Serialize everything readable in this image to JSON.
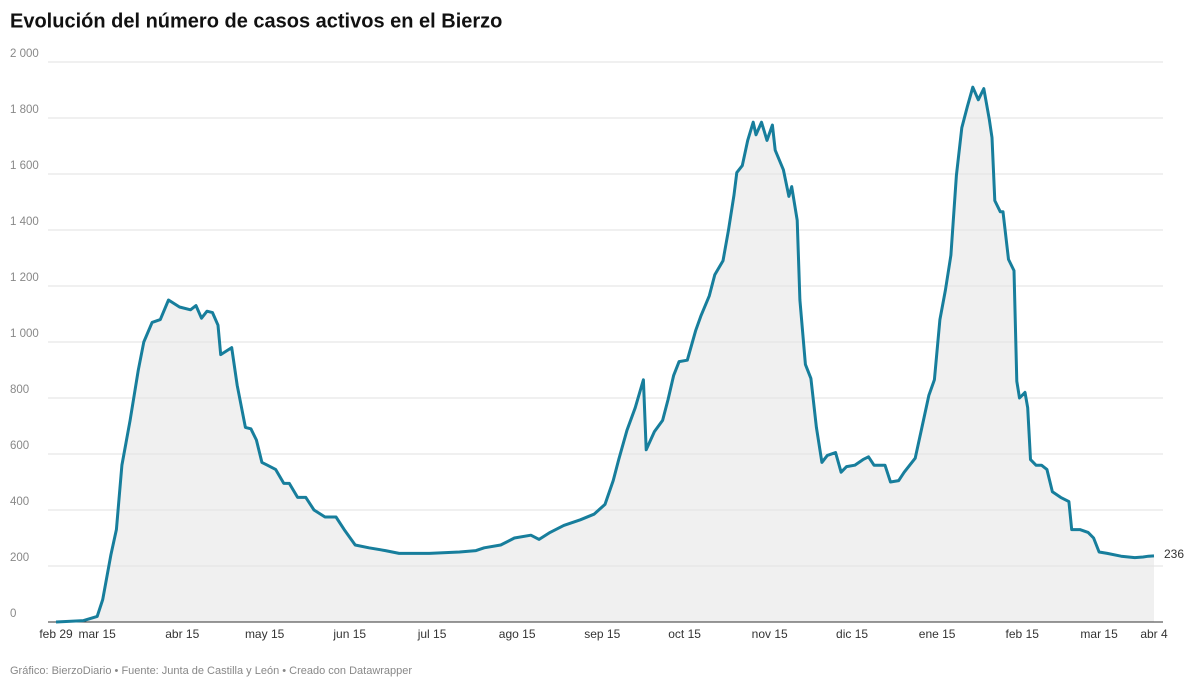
{
  "chart_data": {
    "type": "area",
    "title": "Evolución del número de casos activos en el Bierzo",
    "footer": "Gráfico: BierzoDiario • Fuente: Junta de Castilla y León • Creado con Datawrapper",
    "color": "#177e9c",
    "fill": "#f0f0f0",
    "grid": true,
    "x": [
      0,
      10,
      15,
      17,
      20,
      22,
      24,
      27,
      30,
      32,
      35,
      38,
      41,
      45,
      49,
      51,
      53,
      55,
      57,
      59,
      60,
      64,
      66,
      69,
      71,
      73,
      75,
      77,
      80,
      83,
      85,
      88,
      91,
      94,
      98,
      102,
      105,
      109,
      114,
      120,
      125,
      136,
      147,
      153,
      156,
      162,
      167,
      173,
      176,
      180,
      185,
      191,
      196,
      200,
      203,
      205,
      208,
      211,
      214,
      215,
      218,
      221,
      223,
      225,
      227,
      230,
      233,
      235,
      238,
      240,
      243,
      245,
      247,
      248,
      250,
      252,
      254,
      255,
      257,
      259,
      261,
      262,
      265,
      267,
      268,
      270,
      271,
      273,
      275,
      277,
      279,
      281,
      284,
      286,
      288,
      291,
      294,
      296,
      298,
      302,
      304,
      307,
      309,
      313,
      315,
      318,
      320,
      322,
      324,
      326,
      328,
      330,
      332,
      334,
      336,
      338,
      340,
      341,
      342,
      344,
      345,
      347,
      349,
      350,
      351,
      353,
      354,
      355,
      357,
      359,
      361,
      363,
      366,
      369,
      370,
      373,
      376,
      378,
      380,
      383,
      388,
      393,
      396,
      398,
      400
    ],
    "values": [
      0,
      5,
      20,
      80,
      240,
      330,
      560,
      720,
      900,
      1000,
      1070,
      1080,
      1150,
      1125,
      1115,
      1130,
      1085,
      1110,
      1105,
      1060,
      955,
      980,
      845,
      695,
      690,
      650,
      570,
      560,
      545,
      495,
      495,
      445,
      445,
      400,
      375,
      375,
      330,
      275,
      265,
      255,
      245,
      245,
      250,
      255,
      265,
      275,
      300,
      310,
      295,
      320,
      345,
      365,
      385,
      420,
      505,
      580,
      685,
      765,
      865,
      615,
      680,
      720,
      795,
      880,
      930,
      935,
      1040,
      1095,
      1165,
      1240,
      1290,
      1400,
      1525,
      1605,
      1630,
      1720,
      1785,
      1740,
      1785,
      1720,
      1775,
      1685,
      1615,
      1520,
      1555,
      1435,
      1150,
      920,
      870,
      695,
      570,
      595,
      605,
      535,
      555,
      560,
      580,
      590,
      560,
      560,
      500,
      505,
      535,
      585,
      675,
      810,
      865,
      1080,
      1185,
      1310,
      1595,
      1765,
      1840,
      1910,
      1865,
      1905,
      1795,
      1730,
      1505,
      1465,
      1465,
      1295,
      1255,
      860,
      800,
      820,
      765,
      580,
      560,
      560,
      545,
      465,
      445,
      430,
      330,
      330,
      320,
      300,
      250,
      245,
      235,
      230,
      232,
      235,
      236
    ],
    "xlim": [
      0,
      400
    ],
    "xticks": [
      {
        "value": 0,
        "label": "feb 29"
      },
      {
        "value": 15,
        "label": "mar 15"
      },
      {
        "value": 46,
        "label": "abr 15"
      },
      {
        "value": 76,
        "label": "may 15"
      },
      {
        "value": 107,
        "label": "jun 15"
      },
      {
        "value": 137,
        "label": "jul 15"
      },
      {
        "value": 168,
        "label": "ago 15"
      },
      {
        "value": 199,
        "label": "sep 15"
      },
      {
        "value": 229,
        "label": "oct 15"
      },
      {
        "value": 260,
        "label": "nov 15"
      },
      {
        "value": 290,
        "label": "dic 15"
      },
      {
        "value": 321,
        "label": "ene 15"
      },
      {
        "value": 352,
        "label": "feb 15"
      },
      {
        "value": 380,
        "label": "mar 15"
      },
      {
        "value": 400,
        "label": "abr 4"
      }
    ],
    "ylim": [
      0,
      2000
    ],
    "yticks": [
      0,
      200,
      400,
      600,
      800,
      {
        "value": 1000,
        "label": "1 000"
      },
      {
        "value": 1200,
        "label": "1 200"
      },
      {
        "value": 1400,
        "label": "1 400"
      },
      {
        "value": 1600,
        "label": "1 600"
      },
      {
        "value": 1800,
        "label": "1 800"
      },
      {
        "value": 2000,
        "label": "2 000"
      }
    ]
  }
}
